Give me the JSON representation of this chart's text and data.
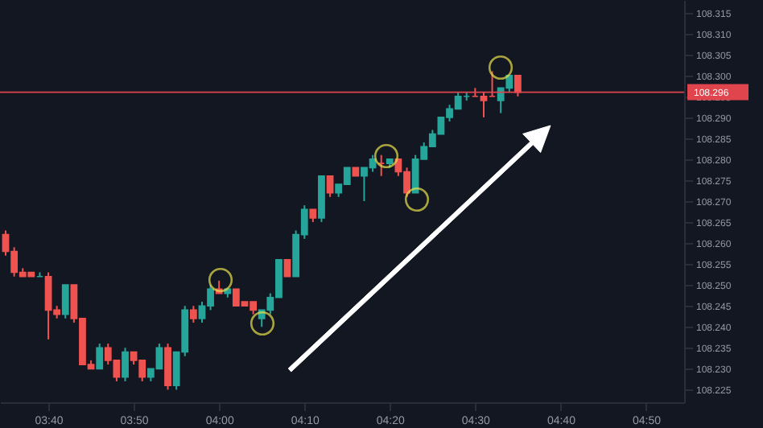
{
  "chart_data": {
    "type": "candlestick",
    "x": [
      3.5833,
      3.6,
      3.6167,
      3.6333,
      3.65,
      3.6667,
      3.6833,
      3.7,
      3.7167,
      3.7333,
      3.75,
      3.7667,
      3.7833,
      3.8,
      3.8167,
      3.8333,
      3.85,
      3.8667,
      3.8833,
      3.9,
      3.9167,
      3.9333,
      3.95,
      3.9667,
      3.9833,
      4.0,
      4.0167,
      4.0333,
      4.05,
      4.0667,
      4.0833,
      4.1,
      4.1167,
      4.1333,
      4.15,
      4.1667,
      4.1833,
      4.2,
      4.2167,
      4.2333,
      4.25,
      4.2667,
      4.2833,
      4.3,
      4.3167,
      4.3333,
      4.35,
      4.3667,
      4.3833,
      4.4,
      4.4167,
      4.4333,
      4.45,
      4.4667,
      4.4833,
      4.5,
      4.5167,
      4.5333,
      4.55,
      4.5667,
      4.5833
    ],
    "ohlc": [
      [
        108.262,
        108.263,
        108.257,
        108.258
      ],
      [
        108.258,
        108.259,
        108.252,
        108.253
      ],
      [
        108.253,
        108.254,
        108.252,
        108.252
      ],
      [
        108.253,
        108.253,
        108.252,
        108.252
      ],
      [
        108.252,
        108.253,
        108.252,
        108.252
      ],
      [
        108.252,
        108.253,
        108.237,
        108.244
      ],
      [
        108.244,
        108.245,
        108.242,
        108.243
      ],
      [
        108.243,
        108.25,
        108.242,
        108.25
      ],
      [
        108.25,
        108.25,
        108.241,
        108.242
      ],
      [
        108.242,
        108.242,
        108.231,
        108.231
      ],
      [
        108.231,
        108.232,
        108.23,
        108.23
      ],
      [
        108.23,
        108.236,
        108.23,
        108.235
      ],
      [
        108.235,
        108.236,
        108.231,
        108.232
      ],
      [
        108.232,
        108.232,
        108.227,
        108.228
      ],
      [
        108.228,
        108.235,
        108.227,
        108.234
      ],
      [
        108.234,
        108.234,
        108.231,
        108.232
      ],
      [
        108.232,
        108.232,
        108.227,
        108.228
      ],
      [
        108.228,
        108.23,
        108.227,
        108.23
      ],
      [
        108.23,
        108.236,
        108.23,
        108.235
      ],
      [
        108.235,
        108.236,
        108.225,
        108.226
      ],
      [
        108.226,
        108.234,
        108.225,
        108.234
      ],
      [
        108.234,
        108.245,
        108.233,
        108.244
      ],
      [
        108.244,
        108.245,
        108.241,
        108.242
      ],
      [
        108.242,
        108.246,
        108.241,
        108.245
      ],
      [
        108.245,
        108.25,
        108.244,
        108.249
      ],
      [
        108.249,
        108.251,
        108.248,
        108.248
      ],
      [
        108.248,
        108.249,
        108.247,
        108.249
      ],
      [
        108.249,
        108.249,
        108.245,
        108.245
      ],
      [
        108.246,
        108.246,
        108.245,
        108.245
      ],
      [
        108.246,
        108.246,
        108.243,
        108.244
      ],
      [
        108.242,
        108.244,
        108.24,
        108.244
      ],
      [
        108.244,
        108.248,
        108.243,
        108.247
      ],
      [
        108.247,
        108.256,
        108.247,
        108.256
      ],
      [
        108.256,
        108.256,
        108.252,
        108.252
      ],
      [
        108.252,
        108.263,
        108.252,
        108.262
      ],
      [
        108.262,
        108.269,
        108.261,
        108.268
      ],
      [
        108.268,
        108.268,
        108.265,
        108.266
      ],
      [
        108.266,
        108.276,
        108.265,
        108.276
      ],
      [
        108.276,
        108.276,
        108.271,
        108.272
      ],
      [
        108.272,
        108.274,
        108.271,
        108.274
      ],
      [
        108.274,
        108.278,
        108.274,
        108.278
      ],
      [
        108.278,
        108.278,
        108.276,
        108.276
      ],
      [
        108.276,
        108.278,
        108.27,
        108.278
      ],
      [
        108.278,
        108.281,
        108.277,
        108.28
      ],
      [
        108.279,
        108.281,
        108.276,
        108.279
      ],
      [
        108.279,
        108.28,
        108.278,
        108.28
      ],
      [
        108.28,
        108.28,
        108.276,
        108.277
      ],
      [
        108.277,
        108.278,
        108.271,
        108.272
      ],
      [
        108.272,
        108.281,
        108.272,
        108.28
      ],
      [
        108.28,
        108.284,
        108.28,
        108.283
      ],
      [
        108.283,
        108.287,
        108.283,
        108.286
      ],
      [
        108.286,
        108.29,
        108.286,
        108.29
      ],
      [
        108.29,
        108.293,
        108.289,
        108.292
      ],
      [
        108.292,
        108.296,
        108.292,
        108.295
      ],
      [
        108.295,
        108.296,
        108.294,
        108.295
      ],
      [
        108.295,
        108.297,
        108.295,
        108.295
      ],
      [
        108.295,
        108.296,
        108.29,
        108.294
      ],
      [
        108.295,
        108.301,
        108.295,
        108.295
      ],
      [
        108.294,
        108.297,
        108.291,
        108.297
      ],
      [
        108.297,
        108.3,
        108.296,
        108.3
      ],
      [
        108.3,
        108.3,
        108.295,
        108.296
      ]
    ],
    "colors": [
      "#ef5350",
      "#ef5350",
      "#ef5350",
      "#ef5350",
      "#26a69a",
      "#ef5350",
      "#ef5350",
      "#26a69a",
      "#ef5350",
      "#ef5350",
      "#ef5350",
      "#26a69a",
      "#ef5350",
      "#ef5350",
      "#26a69a",
      "#ef5350",
      "#ef5350",
      "#26a69a",
      "#26a69a",
      "#ef5350",
      "#26a69a",
      "#26a69a",
      "#ef5350",
      "#26a69a",
      "#26a69a",
      "#ef5350",
      "#26a69a",
      "#ef5350",
      "#ef5350",
      "#ef5350",
      "#26a69a",
      "#26a69a",
      "#26a69a",
      "#ef5350",
      "#26a69a",
      "#26a69a",
      "#ef5350",
      "#26a69a",
      "#ef5350",
      "#26a69a",
      "#26a69a",
      "#ef5350",
      "#26a69a",
      "#26a69a",
      "#ef5350",
      "#26a69a",
      "#ef5350",
      "#ef5350",
      "#26a69a",
      "#26a69a",
      "#26a69a",
      "#26a69a",
      "#26a69a",
      "#26a69a",
      "#26a69a",
      "#ef5350",
      "#ef5350",
      "#ef5350",
      "#26a69a",
      "#26a69a",
      "#ef5350"
    ],
    "xlim": [
      3.5723,
      4.908
    ],
    "xticks": [
      {
        "value": 3.6667,
        "label": "03:40"
      },
      {
        "value": 3.8333,
        "label": "03:50"
      },
      {
        "value": 4.0,
        "label": "04:00"
      },
      {
        "value": 4.1667,
        "label": "04:10"
      },
      {
        "value": 4.3333,
        "label": "04:20"
      },
      {
        "value": 4.5,
        "label": "04:30"
      },
      {
        "value": 4.6667,
        "label": "04:40"
      },
      {
        "value": 4.8333,
        "label": "04:50"
      }
    ],
    "ylim": [
      108.222,
      108.318
    ],
    "yticks": [
      108.225,
      {
        "value": 108.23,
        "label": "108.230"
      },
      108.235,
      {
        "value": 108.24,
        "label": "108.240"
      },
      108.245,
      {
        "value": 108.25,
        "label": "108.250"
      },
      108.255,
      {
        "value": 108.26,
        "label": "108.260"
      },
      108.265,
      {
        "value": 108.27,
        "label": "108.270"
      },
      108.275,
      {
        "value": 108.28,
        "label": "108.280"
      },
      108.285,
      {
        "value": 108.29,
        "label": "108.290"
      },
      108.295,
      {
        "value": 108.3,
        "label": "108.300"
      },
      108.305,
      {
        "value": 108.31,
        "label": "108.310"
      },
      108.315
    ],
    "ref_lines": [
      {
        "axis": "y",
        "value": 108.296,
        "label": "108.296",
        "color": "#e0454e"
      }
    ],
    "grid": false
  }
}
